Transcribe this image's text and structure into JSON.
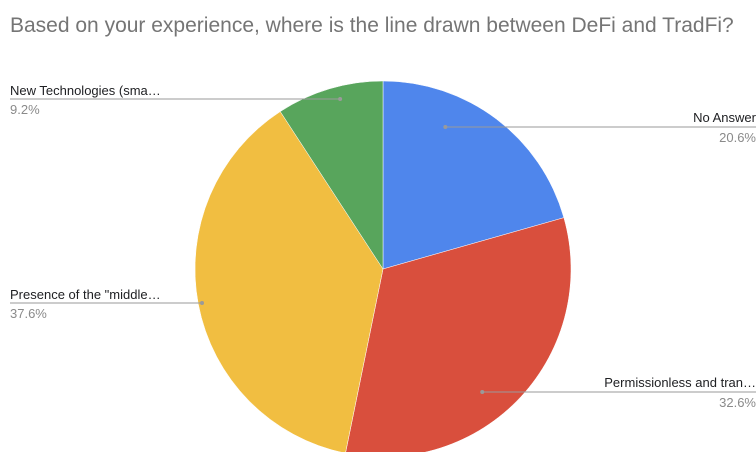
{
  "chart_data": {
    "type": "pie",
    "title": "Based on your experience, where is the line drawn between DeFi and TradFi?",
    "slices": [
      {
        "label": "No Answer",
        "value": 20.6,
        "display": "20.6%",
        "color": "#4F86EC"
      },
      {
        "label": "Permissionless and tran…",
        "value": 32.6,
        "display": "32.6%",
        "color": "#D94F3D"
      },
      {
        "label": "Presence of the \"middle…",
        "value": 37.6,
        "display": "37.6%",
        "color": "#F1BE41"
      },
      {
        "label": "New Technologies (sma…",
        "value": 9.2,
        "display": "9.2%",
        "color": "#58A55C"
      }
    ],
    "start_angle_deg": 0,
    "direction": "clockwise",
    "legend": "labels-outside"
  }
}
